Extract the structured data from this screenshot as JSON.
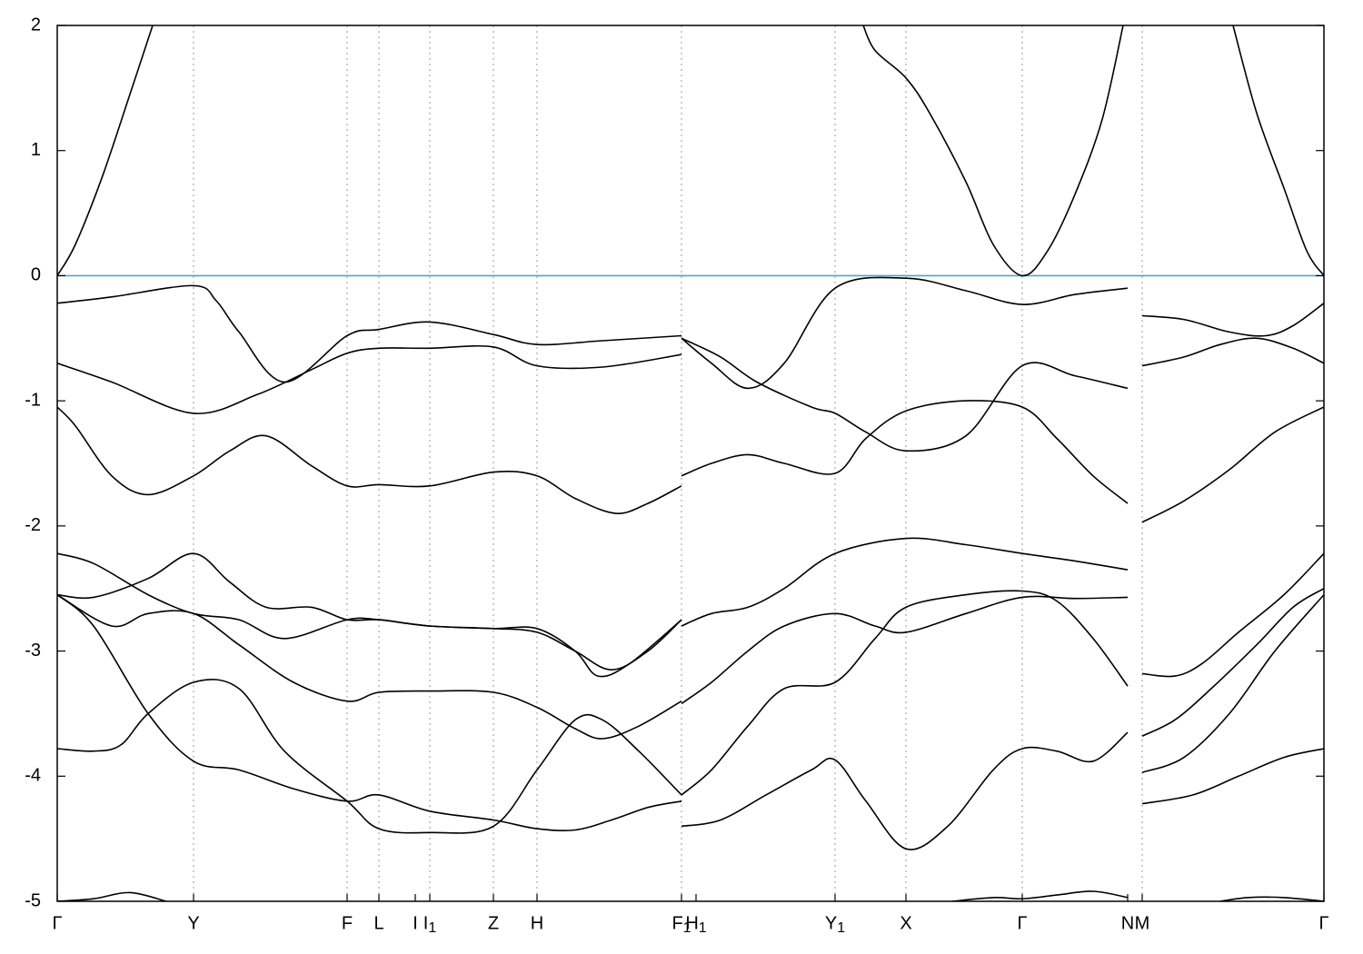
{
  "chart_data": {
    "type": "line",
    "title": "",
    "xlabel": "",
    "ylabel": "",
    "ylim": [
      -5,
      2
    ],
    "yticks": [
      -5,
      -4,
      -3,
      -2,
      -1,
      0,
      1,
      2
    ],
    "grid": "vertical dashed lines at high-symmetry points",
    "fermi_level": {
      "y": 0,
      "color": "#4aa8c8"
    },
    "line_color": "#000000",
    "xlim": [
      0,
      1394
    ],
    "kpoints": [
      {
        "label": "Γ",
        "sub": "",
        "x": 0
      },
      {
        "label": "Y",
        "sub": "",
        "x": 150
      },
      {
        "label": "F",
        "sub": "",
        "x": 319
      },
      {
        "label": "L",
        "sub": "",
        "x": 354
      },
      {
        "label": "I",
        "sub": "",
        "x": 394
      },
      {
        "label": "I",
        "sub": "1",
        "x": 410
      },
      {
        "label": "Z",
        "sub": "",
        "x": 480
      },
      {
        "label": "H",
        "sub": "",
        "x": 528
      },
      {
        "label": "F",
        "sub": "1",
        "x": 687
      },
      {
        "label": "H",
        "sub": "1",
        "x": 703
      },
      {
        "label": "Y",
        "sub": "1",
        "x": 856
      },
      {
        "label": "X",
        "sub": "",
        "x": 934
      },
      {
        "label": "Γ",
        "sub": "",
        "x": 1062
      },
      {
        "label": "N",
        "sub": "",
        "x": 1178
      },
      {
        "label": "M",
        "sub": "",
        "x": 1194
      },
      {
        "label": "Γ",
        "sub": "",
        "x": 1394
      }
    ],
    "vlines_x": [
      150,
      319,
      354,
      410,
      480,
      528,
      687,
      856,
      934,
      1062,
      1194
    ],
    "series": [
      {
        "x": [
          0,
          20,
          50,
          80,
          105
        ],
        "y": [
          0,
          0.25,
          0.8,
          1.45,
          2.0
        ]
      },
      {
        "x": [
          887,
          900,
          934,
          960,
          1000,
          1030,
          1062,
          1090,
          1120,
          1150,
          1173
        ],
        "y": [
          2.0,
          1.8,
          1.58,
          1.3,
          0.75,
          0.25,
          0.0,
          0.2,
          0.65,
          1.25,
          2.0
        ]
      },
      {
        "x": [
          1294,
          1320,
          1350,
          1375,
          1394
        ],
        "y": [
          2.0,
          1.3,
          0.7,
          0.2,
          0.0
        ]
      },
      {
        "x": [
          0,
          60,
          150,
          175,
          200,
          250,
          319,
          354,
          410,
          480,
          528,
          600,
          687
        ],
        "y": [
          -0.22,
          -0.17,
          -0.08,
          -0.2,
          -0.45,
          -0.85,
          -0.48,
          -0.43,
          -0.37,
          -0.47,
          -0.55,
          -0.52,
          -0.48
        ]
      },
      {
        "x": [
          0,
          60,
          150,
          220,
          280,
          319,
          354,
          410,
          480,
          528,
          600,
          687
        ],
        "y": [
          -0.7,
          -0.85,
          -1.1,
          -0.95,
          -0.75,
          -0.62,
          -0.58,
          -0.58,
          -0.57,
          -0.72,
          -0.73,
          -0.63
        ]
      },
      {
        "x": [
          0,
          20,
          60,
          100,
          150,
          190,
          230,
          280,
          319,
          354,
          410,
          480,
          528,
          570,
          615,
          650,
          687
        ],
        "y": [
          -1.05,
          -1.2,
          -1.6,
          -1.75,
          -1.6,
          -1.4,
          -1.28,
          -1.52,
          -1.68,
          -1.67,
          -1.68,
          -1.57,
          -1.6,
          -1.78,
          -1.9,
          -1.82,
          -1.68
        ]
      },
      {
        "x": [
          687,
          720,
          760,
          800,
          856,
          934,
          1000,
          1062,
          1120,
          1178
        ],
        "y": [
          -0.5,
          -0.7,
          -0.9,
          -0.7,
          -0.1,
          -0.02,
          -0.12,
          -0.23,
          -0.15,
          -0.1
        ]
      },
      {
        "x": [
          687,
          730,
          770,
          830,
          856,
          890,
          934,
          1000,
          1062,
          1120,
          1178
        ],
        "y": [
          -0.5,
          -0.65,
          -0.85,
          -1.05,
          -1.1,
          -1.25,
          -1.4,
          -1.28,
          -0.72,
          -0.8,
          -0.9
        ]
      },
      {
        "x": [
          687,
          720,
          760,
          800,
          856,
          890,
          934,
          1000,
          1062,
          1100,
          1140,
          1178
        ],
        "y": [
          -1.6,
          -1.5,
          -1.43,
          -1.5,
          -1.58,
          -1.3,
          -1.08,
          -1.0,
          -1.05,
          -1.3,
          -1.6,
          -1.82
        ]
      },
      {
        "x": [
          1194,
          1240,
          1290,
          1330,
          1360,
          1394
        ],
        "y": [
          -0.32,
          -0.35,
          -0.45,
          -0.48,
          -0.4,
          -0.22
        ]
      },
      {
        "x": [
          1194,
          1240,
          1280,
          1320,
          1360,
          1394
        ],
        "y": [
          -0.72,
          -0.65,
          -0.55,
          -0.5,
          -0.58,
          -0.7
        ]
      },
      {
        "x": [
          1194,
          1240,
          1290,
          1340,
          1394
        ],
        "y": [
          -1.97,
          -1.8,
          -1.55,
          -1.25,
          -1.05
        ]
      },
      {
        "x": [
          0,
          40,
          100,
          150,
          200,
          250,
          319,
          354,
          410,
          480,
          528,
          570,
          595,
          630,
          687
        ],
        "y": [
          -2.22,
          -2.3,
          -2.55,
          -2.7,
          -2.75,
          -2.9,
          -2.75,
          -2.75,
          -2.8,
          -2.82,
          -2.82,
          -3.0,
          -3.2,
          -3.1,
          -2.75
        ]
      },
      {
        "x": [
          0,
          40,
          100,
          150,
          190,
          230,
          280,
          319,
          354,
          410,
          480,
          528,
          570,
          610,
          650,
          687
        ],
        "y": [
          -2.55,
          -2.57,
          -2.42,
          -2.22,
          -2.45,
          -2.65,
          -2.65,
          -2.75,
          -2.75,
          -2.8,
          -2.82,
          -2.85,
          -3.0,
          -3.15,
          -3.0,
          -2.75
        ]
      },
      {
        "x": [
          0,
          40,
          100,
          150,
          200,
          260,
          319,
          354,
          410,
          480,
          528,
          570,
          610,
          650,
          687
        ],
        "y": [
          -2.55,
          -2.8,
          -3.5,
          -3.88,
          -3.95,
          -4.1,
          -4.2,
          -4.15,
          -4.28,
          -4.35,
          -4.42,
          -4.43,
          -4.35,
          -4.25,
          -4.2
        ]
      },
      {
        "x": [
          0,
          40,
          70,
          100,
          150,
          200,
          250,
          319,
          354,
          410,
          480,
          528,
          570,
          600,
          640,
          687
        ],
        "y": [
          -3.78,
          -3.8,
          -3.75,
          -3.5,
          -3.25,
          -3.3,
          -3.8,
          -4.2,
          -4.42,
          -4.45,
          -4.4,
          -3.95,
          -3.55,
          -3.55,
          -3.8,
          -4.15
        ]
      },
      {
        "x": [
          0,
          60,
          100,
          150,
          200,
          260,
          319,
          354,
          410,
          480,
          528,
          570,
          600,
          640,
          687
        ],
        "y": [
          -2.55,
          -2.8,
          -2.7,
          -2.7,
          -2.95,
          -3.25,
          -3.4,
          -3.33,
          -3.32,
          -3.33,
          -3.45,
          -3.62,
          -3.7,
          -3.6,
          -3.4
        ]
      },
      {
        "x": [
          687,
          720,
          760,
          800,
          856,
          934,
          1000,
          1062,
          1120,
          1178
        ],
        "y": [
          -2.8,
          -2.7,
          -2.65,
          -2.5,
          -2.22,
          -2.1,
          -2.15,
          -2.22,
          -2.28,
          -2.35
        ]
      },
      {
        "x": [
          687,
          720,
          760,
          800,
          856,
          900,
          934,
          1000,
          1062,
          1120,
          1178
        ],
        "y": [
          -3.42,
          -3.25,
          -3.0,
          -2.8,
          -2.7,
          -2.8,
          -2.85,
          -2.7,
          -2.57,
          -2.58,
          -2.57
        ]
      },
      {
        "x": [
          687,
          720,
          760,
          800,
          856,
          900,
          934,
          1000,
          1062,
          1100,
          1140,
          1178
        ],
        "y": [
          -4.15,
          -3.95,
          -3.6,
          -3.3,
          -3.25,
          -2.9,
          -2.65,
          -2.55,
          -2.52,
          -2.6,
          -2.9,
          -3.28
        ]
      },
      {
        "x": [
          687,
          730,
          780,
          830,
          856,
          890,
          934,
          980,
          1030,
          1062,
          1100,
          1140,
          1178
        ],
        "y": [
          -4.4,
          -4.35,
          -4.15,
          -3.95,
          -3.87,
          -4.2,
          -4.58,
          -4.4,
          -3.95,
          -3.78,
          -3.8,
          -3.88,
          -3.65
        ]
      },
      {
        "x": [
          1194,
          1230,
          1260,
          1300,
          1350,
          1394
        ],
        "y": [
          -3.18,
          -3.2,
          -3.1,
          -2.85,
          -2.55,
          -2.22
        ]
      },
      {
        "x": [
          1194,
          1230,
          1270,
          1320,
          1360,
          1394
        ],
        "y": [
          -3.68,
          -3.55,
          -3.3,
          -2.95,
          -2.65,
          -2.5
        ]
      },
      {
        "x": [
          1194,
          1240,
          1290,
          1340,
          1394
        ],
        "y": [
          -3.97,
          -3.85,
          -3.5,
          -3.0,
          -2.55
        ]
      },
      {
        "x": [
          1194,
          1250,
          1300,
          1350,
          1394
        ],
        "y": [
          -4.22,
          -4.15,
          -4.0,
          -3.85,
          -3.78
        ]
      },
      {
        "x": [
          0,
          40,
          80,
          120
        ],
        "y": [
          -5.0,
          -4.98,
          -4.93,
          -5.0
        ]
      },
      {
        "x": [
          985,
          1030,
          1062,
          1100,
          1140,
          1178
        ],
        "y": [
          -5.0,
          -4.97,
          -4.98,
          -4.95,
          -4.92,
          -4.97
        ]
      },
      {
        "x": [
          1280,
          1310,
          1350,
          1394
        ],
        "y": [
          -5.0,
          -4.97,
          -4.97,
          -5.0
        ]
      }
    ]
  }
}
